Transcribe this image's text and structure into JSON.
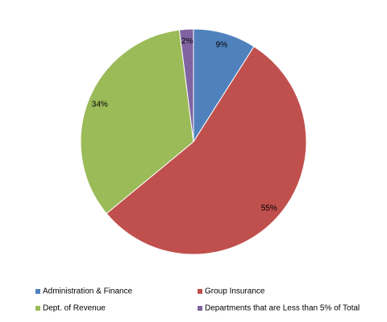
{
  "chart_data": {
    "type": "pie",
    "categories": [
      "Administration & Finance",
      "Group Insurance",
      "Dept. of Revenue",
      "Departments that are Less than 5% of Total"
    ],
    "values": [
      9,
      55,
      34,
      2
    ],
    "value_labels": [
      "9%",
      "55%",
      "34%",
      "2%"
    ],
    "colors": [
      "#4f81bd",
      "#c0504d",
      "#9bbb59",
      "#8064a2"
    ],
    "legend": "bottom"
  }
}
